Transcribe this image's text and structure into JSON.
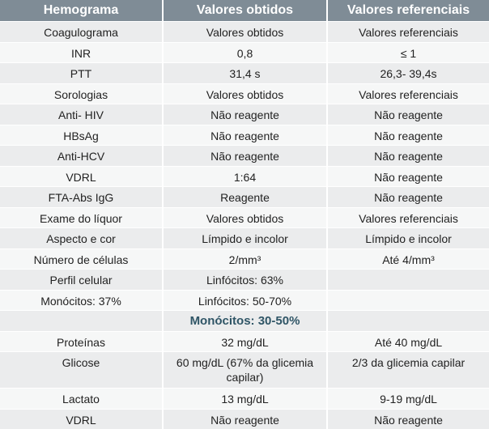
{
  "table": {
    "headers": [
      "Hemograma",
      "Valores obtidos",
      "Valores referenciais"
    ],
    "rows": [
      [
        "Coagulograma",
        "Valores obtidos",
        "Valores referenciais"
      ],
      [
        "INR",
        "0,8",
        "≤ 1"
      ],
      [
        "PTT",
        "31,4 s",
        "26,3- 39,4s"
      ],
      [
        "Sorologias",
        "Valores obtidos",
        "Valores referenciais"
      ],
      [
        "Anti- HIV",
        "Não reagente",
        "Não reagente"
      ],
      [
        "HBsAg",
        "Não reagente",
        "Não reagente"
      ],
      [
        "Anti-HCV",
        "Não reagente",
        "Não reagente"
      ],
      [
        "VDRL",
        "1:64",
        "Não reagente"
      ],
      [
        "FTA-Abs IgG",
        "Reagente",
        "Não reagente"
      ],
      [
        "Exame do líquor",
        "Valores obtidos",
        "Valores referenciais"
      ],
      [
        "Aspecto e cor",
        "Límpido e incolor",
        "Límpido e incolor"
      ],
      [
        "Número de células",
        "2/mm³",
        "Até 4/mm³"
      ],
      [
        "Perfil celular",
        "Linfócitos: 63%",
        ""
      ],
      [
        "Monócitos: 37%",
        "Linfócitos: 50-70%",
        ""
      ],
      [
        "",
        "Monócitos: 30-50%",
        ""
      ],
      [
        "Proteínas",
        "32 mg/dL",
        "Até 40 mg/dL"
      ],
      [
        "Glicose",
        "60 mg/dL (67% da glicemia capilar)",
        "2/3 da glicemia capilar"
      ],
      [
        "Lactato",
        "13 mg/dL",
        "9-19 mg/dL"
      ],
      [
        "VDRL",
        "Não reagente",
        "Não reagente"
      ]
    ]
  }
}
